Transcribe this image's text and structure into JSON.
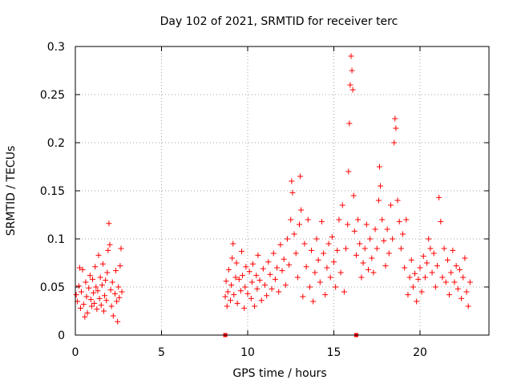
{
  "chart_data": {
    "type": "scatter",
    "title": "Day 102 of 2021, SRMTID for receiver terc",
    "xlabel": "GPS time / hours",
    "ylabel": "SRMTID / TECUs",
    "xlim": [
      0,
      24
    ],
    "ylim": [
      0,
      0.3
    ],
    "x_ticks": [
      0,
      5,
      10,
      15,
      20
    ],
    "x_tick_labels": [
      "0",
      "5",
      "10",
      "15",
      "20"
    ],
    "y_ticks": [
      0,
      0.05,
      0.1,
      0.15,
      0.2,
      0.25,
      0.3
    ],
    "y_tick_labels": [
      "0",
      "0.05",
      "0.1",
      "0.15",
      "0.2",
      "0.25",
      "0.3"
    ],
    "grid": true,
    "marker": "+",
    "color": "#ff0000",
    "series": [
      {
        "name": "SRMTID",
        "points": [
          [
            0.05,
            0.042
          ],
          [
            0.12,
            0.035
          ],
          [
            0.2,
            0.051
          ],
          [
            0.25,
            0.07
          ],
          [
            0.3,
            0.028
          ],
          [
            0.35,
            0.045
          ],
          [
            0.42,
            0.068
          ],
          [
            0.48,
            0.032
          ],
          [
            0.55,
            0.019
          ],
          [
            0.6,
            0.055
          ],
          [
            0.65,
            0.04
          ],
          [
            0.7,
            0.023
          ],
          [
            0.78,
            0.049
          ],
          [
            0.85,
            0.062
          ],
          [
            0.9,
            0.037
          ],
          [
            0.95,
            0.03
          ],
          [
            1.0,
            0.058
          ],
          [
            1.05,
            0.044
          ],
          [
            1.1,
            0.033
          ],
          [
            1.15,
            0.071
          ],
          [
            1.2,
            0.05
          ],
          [
            1.25,
            0.027
          ],
          [
            1.3,
            0.046
          ],
          [
            1.35,
            0.083
          ],
          [
            1.4,
            0.038
          ],
          [
            1.45,
            0.06
          ],
          [
            1.5,
            0.031
          ],
          [
            1.55,
            0.052
          ],
          [
            1.6,
            0.074
          ],
          [
            1.65,
            0.025
          ],
          [
            1.7,
            0.041
          ],
          [
            1.75,
            0.057
          ],
          [
            1.8,
            0.036
          ],
          [
            1.85,
            0.065
          ],
          [
            1.9,
            0.088
          ],
          [
            1.95,
            0.116
          ],
          [
            2.0,
            0.094
          ],
          [
            2.05,
            0.047
          ],
          [
            2.1,
            0.03
          ],
          [
            2.15,
            0.055
          ],
          [
            2.2,
            0.02
          ],
          [
            2.3,
            0.043
          ],
          [
            2.35,
            0.067
          ],
          [
            2.4,
            0.035
          ],
          [
            2.45,
            0.014
          ],
          [
            2.5,
            0.05
          ],
          [
            2.55,
            0.039
          ],
          [
            2.6,
            0.072
          ],
          [
            2.65,
            0.09
          ],
          [
            2.7,
            0.045
          ],
          [
            8.7,
            0.04
          ],
          [
            8.75,
            0.056
          ],
          [
            8.8,
            0.03
          ],
          [
            8.85,
            0.045
          ],
          [
            8.9,
            0.068
          ],
          [
            9.0,
            0.036
          ],
          [
            9.05,
            0.052
          ],
          [
            9.1,
            0.08
          ],
          [
            9.15,
            0.095
          ],
          [
            9.2,
            0.042
          ],
          [
            9.3,
            0.06
          ],
          [
            9.35,
            0.075
          ],
          [
            9.4,
            0.033
          ],
          [
            9.5,
            0.058
          ],
          [
            9.6,
            0.046
          ],
          [
            9.65,
            0.087
          ],
          [
            9.7,
            0.062
          ],
          [
            9.8,
            0.028
          ],
          [
            9.85,
            0.05
          ],
          [
            9.9,
            0.071
          ],
          [
            10.0,
            0.043
          ],
          [
            10.1,
            0.066
          ],
          [
            10.2,
            0.038
          ],
          [
            10.25,
            0.055
          ],
          [
            10.3,
            0.074
          ],
          [
            10.4,
            0.03
          ],
          [
            10.5,
            0.062
          ],
          [
            10.55,
            0.048
          ],
          [
            10.6,
            0.083
          ],
          [
            10.7,
            0.057
          ],
          [
            10.8,
            0.036
          ],
          [
            10.9,
            0.069
          ],
          [
            11.0,
            0.052
          ],
          [
            11.1,
            0.041
          ],
          [
            11.2,
            0.076
          ],
          [
            11.3,
            0.063
          ],
          [
            11.4,
            0.048
          ],
          [
            11.5,
            0.085
          ],
          [
            11.6,
            0.058
          ],
          [
            11.7,
            0.07
          ],
          [
            11.8,
            0.045
          ],
          [
            11.9,
            0.094
          ],
          [
            12.0,
            0.067
          ],
          [
            12.1,
            0.079
          ],
          [
            12.2,
            0.052
          ],
          [
            12.3,
            0.1
          ],
          [
            12.4,
            0.073
          ],
          [
            12.5,
            0.12
          ],
          [
            12.55,
            0.16
          ],
          [
            12.6,
            0.148
          ],
          [
            12.7,
            0.105
          ],
          [
            12.8,
            0.085
          ],
          [
            12.9,
            0.06
          ],
          [
            13.0,
            0.115
          ],
          [
            13.05,
            0.165
          ],
          [
            13.1,
            0.13
          ],
          [
            13.2,
            0.04
          ],
          [
            13.3,
            0.095
          ],
          [
            13.4,
            0.071
          ],
          [
            13.5,
            0.12
          ],
          [
            13.6,
            0.05
          ],
          [
            13.7,
            0.088
          ],
          [
            13.8,
            0.035
          ],
          [
            13.9,
            0.065
          ],
          [
            14.0,
            0.1
          ],
          [
            14.1,
            0.078
          ],
          [
            14.2,
            0.055
          ],
          [
            14.3,
            0.118
          ],
          [
            14.4,
            0.085
          ],
          [
            14.5,
            0.042
          ],
          [
            14.6,
            0.07
          ],
          [
            14.7,
            0.095
          ],
          [
            14.8,
            0.06
          ],
          [
            14.9,
            0.102
          ],
          [
            15.0,
            0.076
          ],
          [
            15.1,
            0.05
          ],
          [
            15.2,
            0.088
          ],
          [
            15.3,
            0.12
          ],
          [
            15.4,
            0.065
          ],
          [
            15.5,
            0.135
          ],
          [
            15.6,
            0.045
          ],
          [
            15.7,
            0.09
          ],
          [
            15.8,
            0.115
          ],
          [
            15.85,
            0.17
          ],
          [
            15.9,
            0.22
          ],
          [
            15.95,
            0.26
          ],
          [
            16.0,
            0.29
          ],
          [
            16.05,
            0.275
          ],
          [
            16.1,
            0.255
          ],
          [
            16.15,
            0.145
          ],
          [
            16.2,
            0.108
          ],
          [
            16.3,
            0.083
          ],
          [
            16.4,
            0.12
          ],
          [
            16.5,
            0.095
          ],
          [
            16.6,
            0.06
          ],
          [
            16.7,
            0.075
          ],
          [
            16.8,
            0.09
          ],
          [
            16.9,
            0.115
          ],
          [
            17.0,
            0.068
          ],
          [
            17.1,
            0.1
          ],
          [
            17.2,
            0.08
          ],
          [
            17.3,
            0.065
          ],
          [
            17.4,
            0.11
          ],
          [
            17.5,
            0.09
          ],
          [
            17.6,
            0.14
          ],
          [
            17.65,
            0.175
          ],
          [
            17.7,
            0.155
          ],
          [
            17.8,
            0.12
          ],
          [
            17.9,
            0.098
          ],
          [
            18.0,
            0.072
          ],
          [
            18.1,
            0.11
          ],
          [
            18.2,
            0.085
          ],
          [
            18.3,
            0.135
          ],
          [
            18.4,
            0.1
          ],
          [
            18.5,
            0.2
          ],
          [
            18.55,
            0.225
          ],
          [
            18.6,
            0.215
          ],
          [
            18.7,
            0.14
          ],
          [
            18.8,
            0.118
          ],
          [
            18.9,
            0.09
          ],
          [
            19.0,
            0.105
          ],
          [
            19.1,
            0.07
          ],
          [
            19.2,
            0.12
          ],
          [
            19.3,
            0.042
          ],
          [
            19.4,
            0.06
          ],
          [
            19.5,
            0.078
          ],
          [
            19.6,
            0.05
          ],
          [
            19.7,
            0.064
          ],
          [
            19.8,
            0.035
          ],
          [
            19.9,
            0.058
          ],
          [
            20.0,
            0.07
          ],
          [
            20.1,
            0.045
          ],
          [
            20.2,
            0.082
          ],
          [
            20.3,
            0.06
          ],
          [
            20.4,
            0.075
          ],
          [
            20.5,
            0.1
          ],
          [
            20.6,
            0.09
          ],
          [
            20.7,
            0.065
          ],
          [
            20.8,
            0.085
          ],
          [
            20.9,
            0.05
          ],
          [
            21.0,
            0.072
          ],
          [
            21.1,
            0.143
          ],
          [
            21.2,
            0.118
          ],
          [
            21.3,
            0.06
          ],
          [
            21.4,
            0.09
          ],
          [
            21.5,
            0.055
          ],
          [
            21.6,
            0.078
          ],
          [
            21.7,
            0.042
          ],
          [
            21.8,
            0.065
          ],
          [
            21.9,
            0.088
          ],
          [
            22.0,
            0.055
          ],
          [
            22.1,
            0.072
          ],
          [
            22.2,
            0.048
          ],
          [
            22.3,
            0.068
          ],
          [
            22.4,
            0.038
          ],
          [
            22.5,
            0.06
          ],
          [
            22.6,
            0.08
          ],
          [
            22.7,
            0.045
          ],
          [
            22.8,
            0.03
          ],
          [
            22.9,
            0.055
          ]
        ]
      }
    ],
    "axis_markers": [
      8.7,
      16.3
    ]
  }
}
